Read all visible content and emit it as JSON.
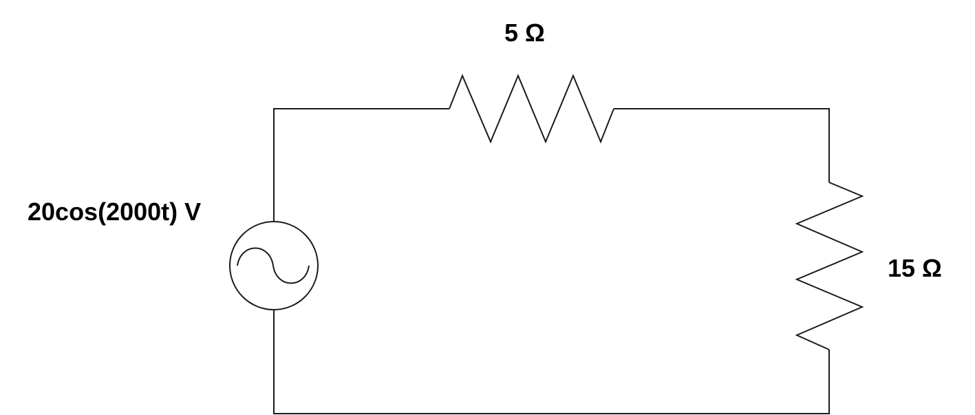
{
  "components": {
    "voltage_source": {
      "label": "20cos(2000t) V",
      "icon": "ac-voltage-source-icon"
    },
    "resistor_top": {
      "label": "5 Ω",
      "icon": "resistor-icon"
    },
    "resistor_right": {
      "label": "15 Ω",
      "icon": "resistor-icon"
    }
  }
}
